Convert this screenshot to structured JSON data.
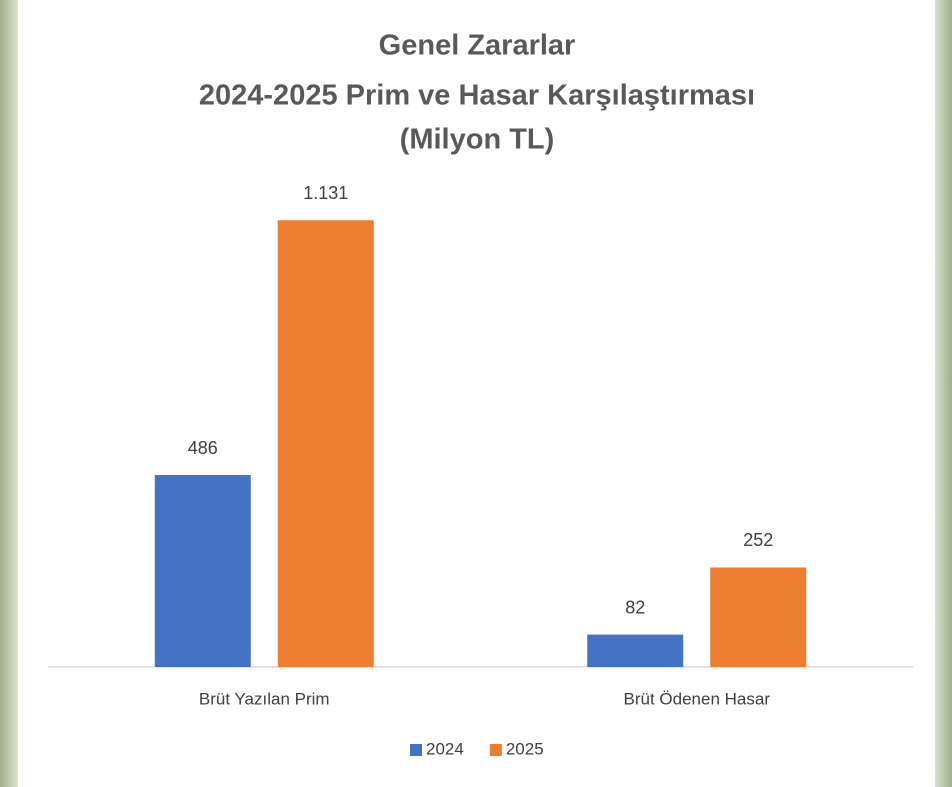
{
  "chart_data": {
    "type": "bar",
    "title": [
      "Genel Zararlar",
      "2024-2025 Prim ve Hasar Karşılaştırması",
      "(Milyon TL)"
    ],
    "categories": [
      "Brüt Yazılan Prim",
      "Brüt Ödenen Hasar"
    ],
    "series": [
      {
        "name": "2024",
        "color": "#4472c4",
        "values": [
          486,
          82
        ],
        "value_labels": [
          "486",
          "82"
        ]
      },
      {
        "name": "2025",
        "color": "#ed7d31",
        "values": [
          1131,
          252
        ],
        "value_labels": [
          "1.131",
          "252"
        ]
      }
    ],
    "ylim": [
      0,
      1200
    ],
    "legend": "bottom"
  }
}
